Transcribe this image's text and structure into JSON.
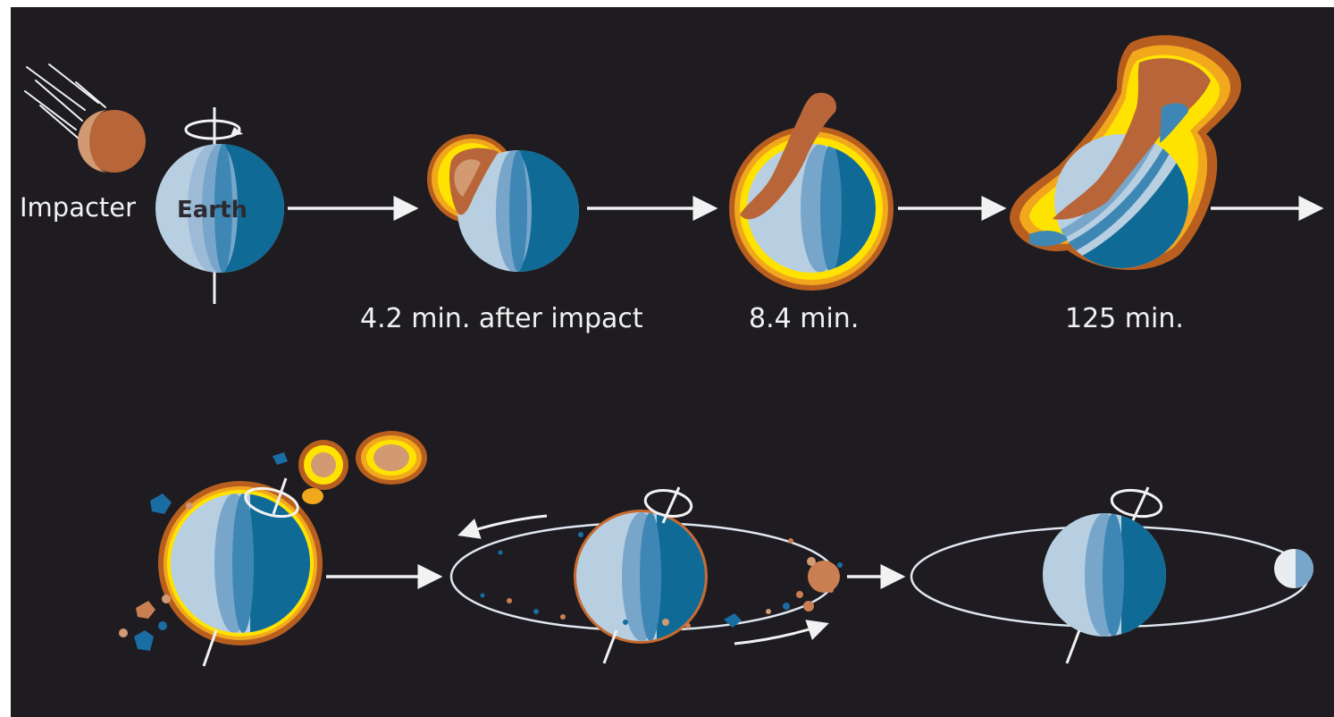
{
  "labels": {
    "impacter": "Impacter",
    "earth": "Earth",
    "stage_1_time": "4.2 min. after impact",
    "stage_2_time": "8.4 min.",
    "stage_3_time": "125 min."
  },
  "colors": {
    "background": "#1e1c20",
    "ocean_blue": "#0f6a96",
    "mid_blue": "#3e87b5",
    "light_blue": "#78a6cb",
    "pale_blue": "#b8cfe2",
    "impacter_brown": "#b9653a",
    "impacter_tan": "#d19a72",
    "glow_yellow": "#ffe300",
    "glow_orange": "#f2a81d",
    "glow_dark": "#b85f20",
    "arrow": "#f2f2f2"
  }
}
